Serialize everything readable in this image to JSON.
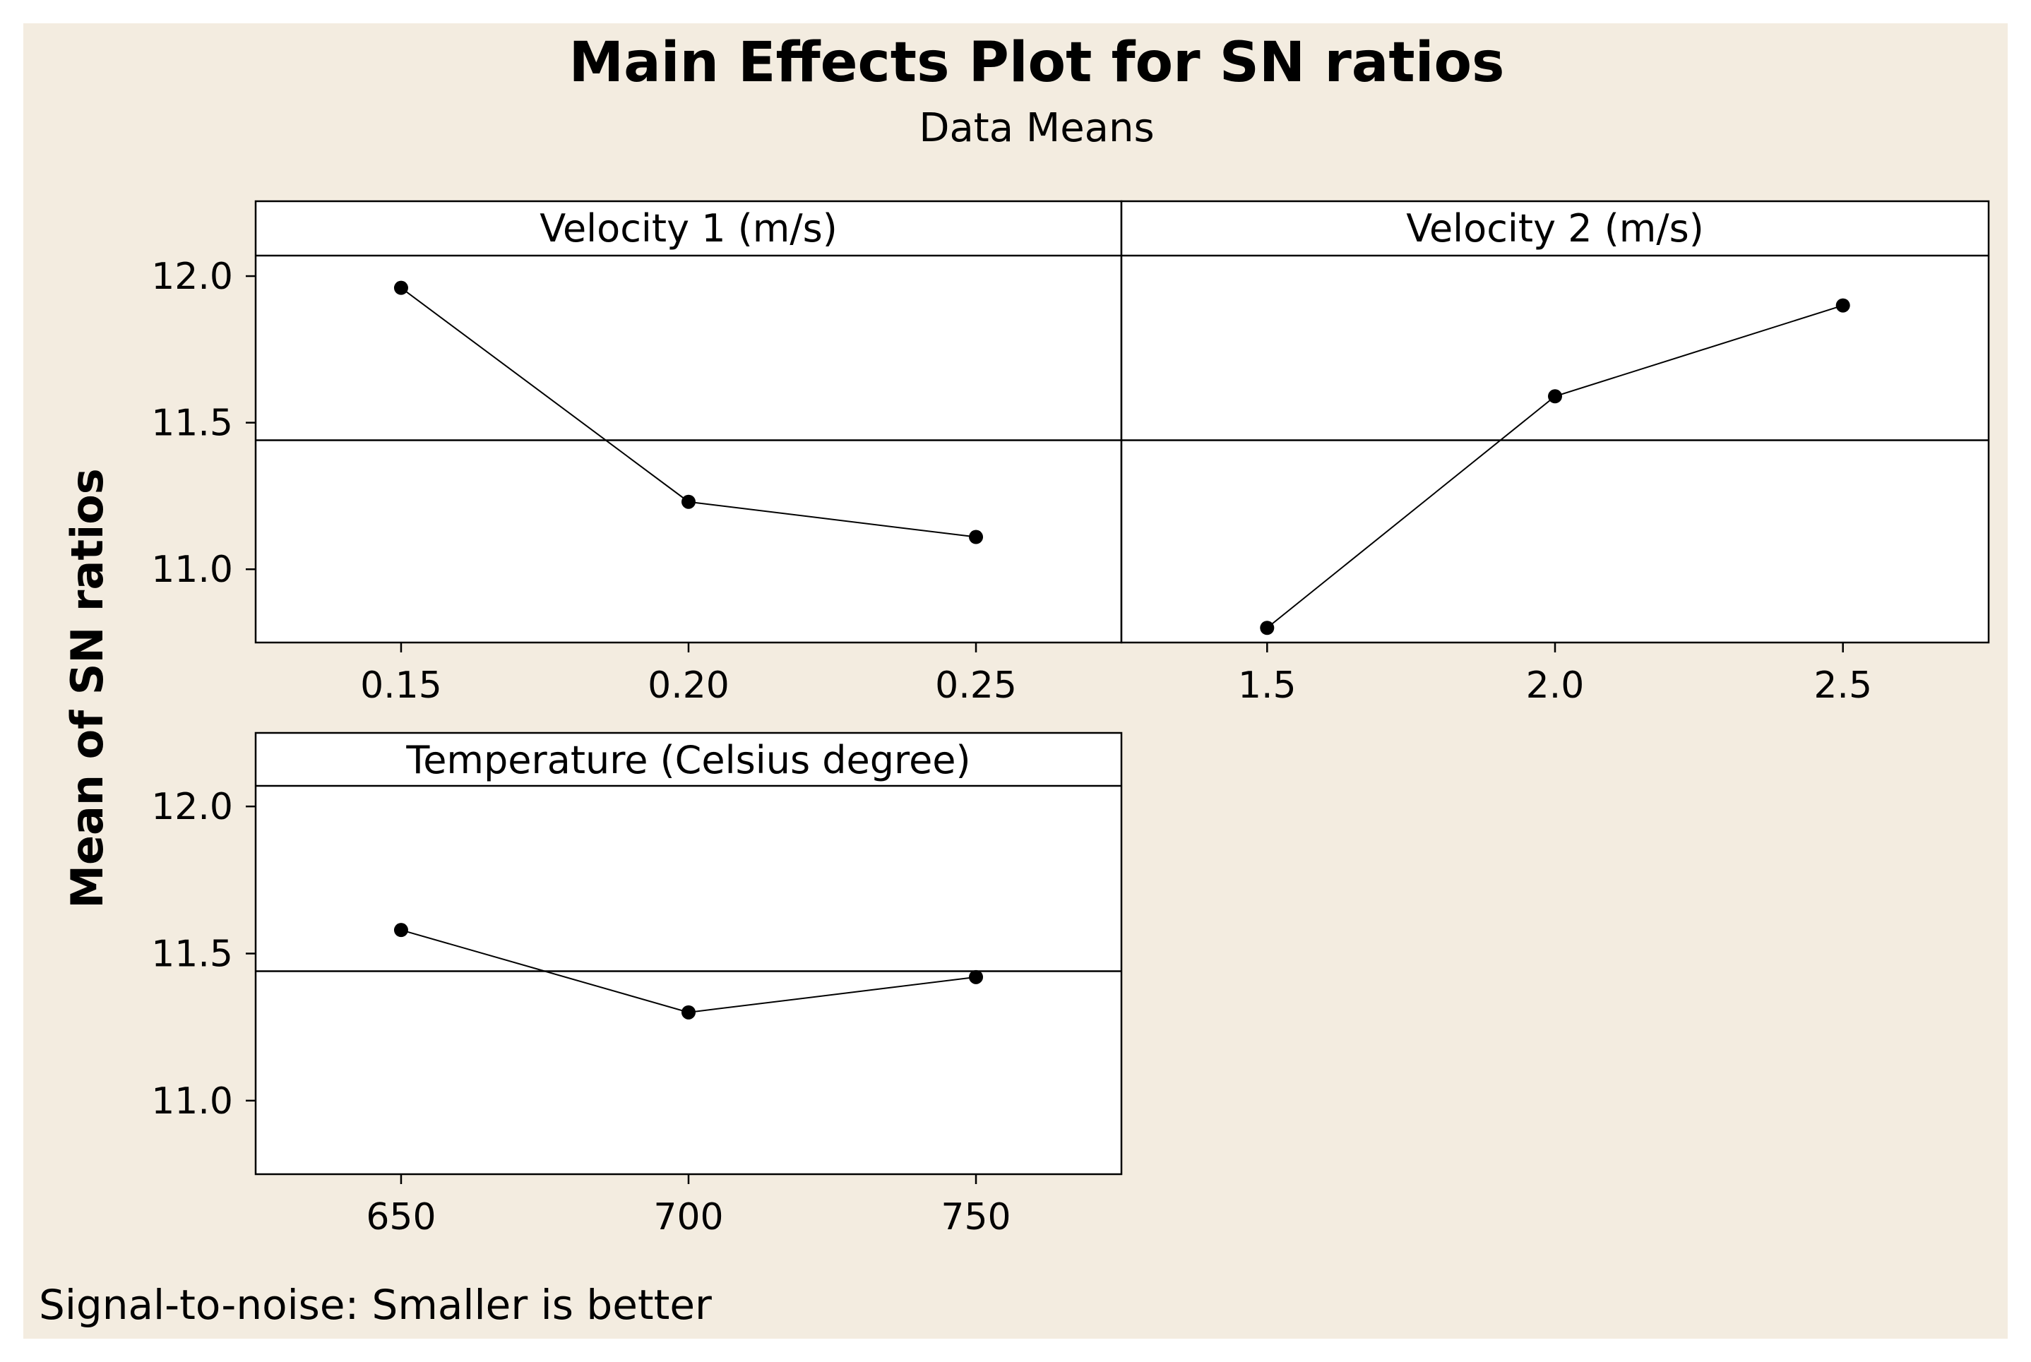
{
  "chart_data": {
    "type": "line",
    "title": "Main Effects Plot for SN ratios",
    "subtitle": "Data Means",
    "ylabel": "Mean of SN ratios",
    "ylim": [
      10.75,
      12.07
    ],
    "yticks": [
      "11.0",
      "11.5",
      "12.0"
    ],
    "ytick_values": [
      11.0,
      11.5,
      12.0
    ],
    "overall_mean": 11.44,
    "footnote": "Signal-to-noise: Smaller is better",
    "colors": {
      "background": "#f3ece0",
      "plot": "#ffffff",
      "line": "#000000"
    },
    "panels": [
      {
        "name": "velocity-1",
        "label": "Velocity 1 (m/s)",
        "categories": [
          "0.15",
          "0.20",
          "0.25"
        ],
        "values": [
          11.96,
          11.23,
          11.11
        ]
      },
      {
        "name": "velocity-2",
        "label": "Velocity 2 (m/s)",
        "categories": [
          "1.5",
          "2.0",
          "2.5"
        ],
        "values": [
          10.8,
          11.59,
          11.9
        ]
      },
      {
        "name": "temperature",
        "label": "Temperature (Celsius degree)",
        "categories": [
          "650",
          "700",
          "750"
        ],
        "values": [
          11.58,
          11.3,
          11.42
        ]
      }
    ]
  }
}
